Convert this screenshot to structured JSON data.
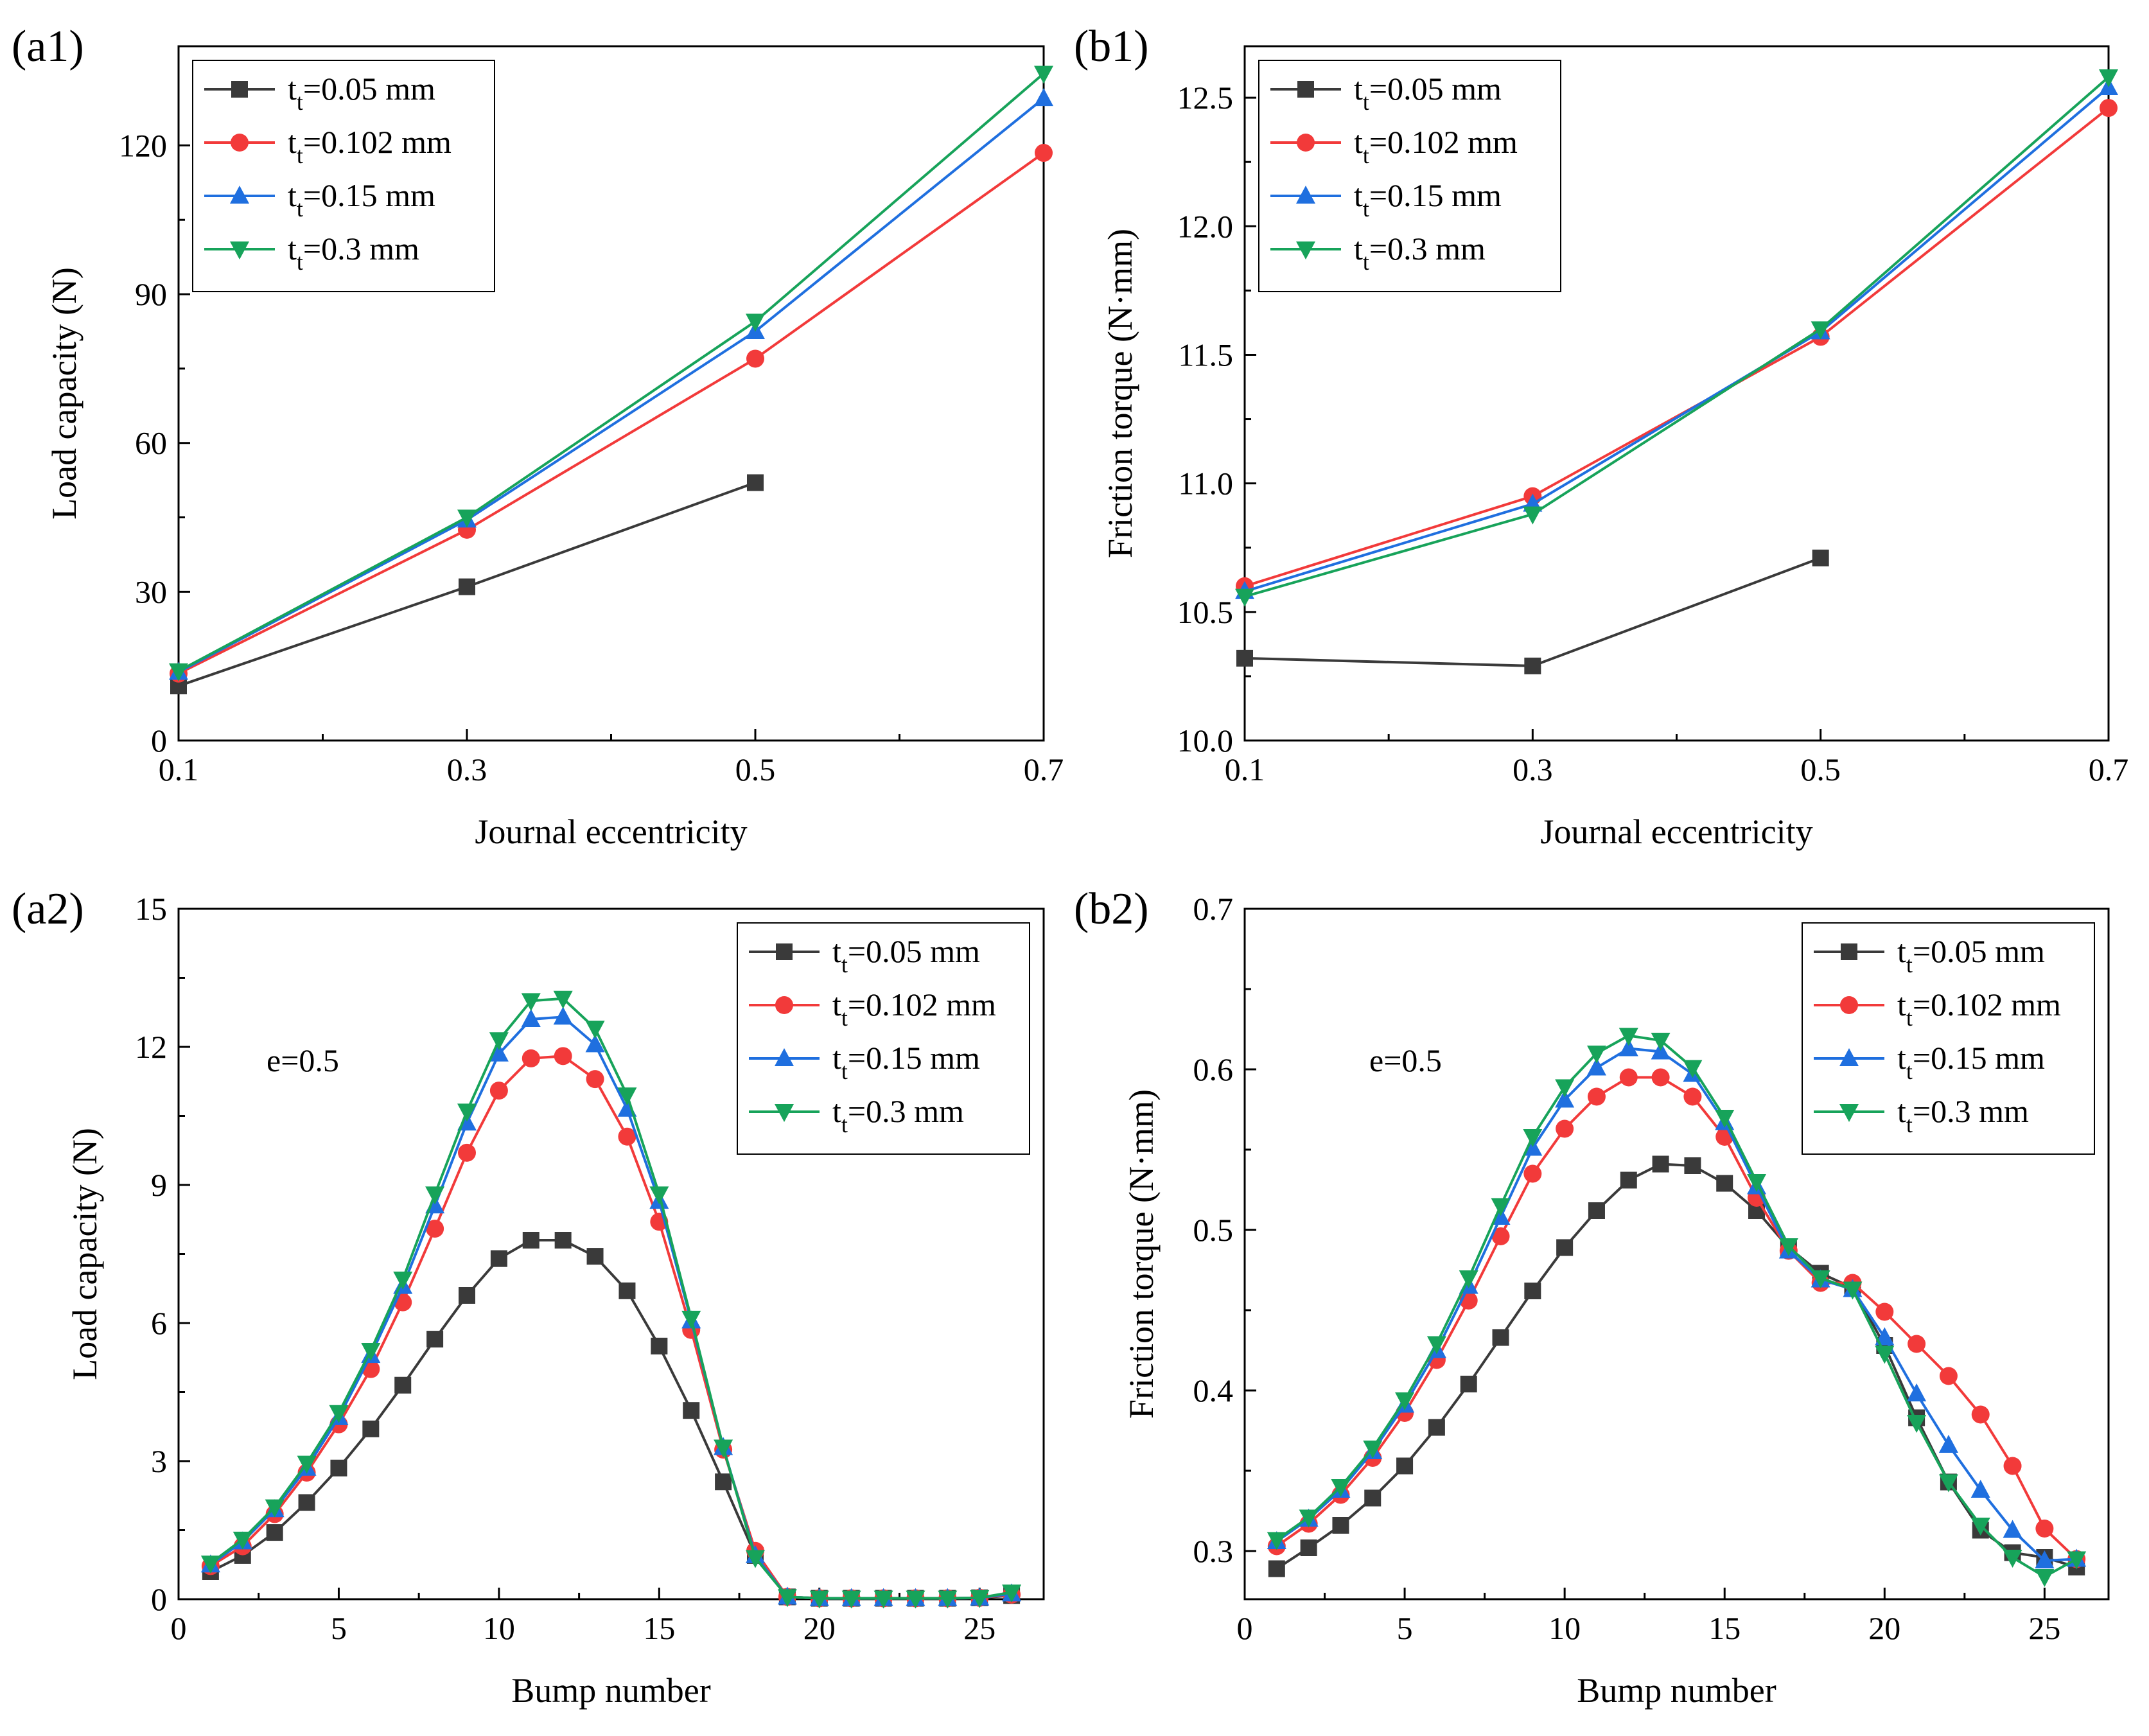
{
  "figure": {
    "colors": {
      "0.05": "#3a3a3a",
      "0.102": "#f23a3a",
      "0.15": "#1f6fdf",
      "0.3": "#17a35a"
    },
    "panels": [
      {
        "id": "a1",
        "label": "(a1)",
        "annotation": "",
        "chart_data": {
          "type": "line",
          "xlabel": "Journal eccentricity",
          "ylabel": "Load capacity (N)",
          "xlim": [
            0.1,
            0.7
          ],
          "ylim": [
            0,
            140
          ],
          "xticks": [
            0.1,
            0.3,
            0.5,
            0.7
          ],
          "xtick_labels": [
            "0.1",
            "0.3",
            "0.5",
            "0.7"
          ],
          "xminor": [
            0.2,
            0.4,
            0.6
          ],
          "yticks": [
            0,
            30,
            60,
            90,
            120
          ],
          "ytick_labels": [
            "0",
            "30",
            "60",
            "90",
            "120"
          ],
          "legend_position": "top-left",
          "series": [
            {
              "name_main": "t",
              "name_sub": "t",
              "name_rest": "=0.05 mm",
              "key": "0.05",
              "marker": "square",
              "x": [
                0.1,
                0.3,
                0.5
              ],
              "values": [
                11,
                31,
                52
              ]
            },
            {
              "name_main": "t",
              "name_sub": "t",
              "name_rest": "=0.102 mm",
              "key": "0.102",
              "marker": "circle",
              "x": [
                0.1,
                0.3,
                0.5,
                0.7
              ],
              "values": [
                13.5,
                42.5,
                77,
                118.5
              ]
            },
            {
              "name_main": "t",
              "name_sub": "t",
              "name_rest": "=0.15 mm",
              "key": "0.15",
              "marker": "triangle-up",
              "x": [
                0.1,
                0.3,
                0.5,
                0.7
              ],
              "values": [
                13.8,
                44.5,
                82.5,
                129.5
              ]
            },
            {
              "name_main": "t",
              "name_sub": "t",
              "name_rest": "=0.3 mm",
              "key": "0.3",
              "marker": "triangle-down",
              "x": [
                0.1,
                0.3,
                0.5,
                0.7
              ],
              "values": [
                14,
                45,
                84.5,
                134.5
              ]
            }
          ]
        }
      },
      {
        "id": "b1",
        "label": "(b1)",
        "annotation": "",
        "chart_data": {
          "type": "line",
          "xlabel": "Journal eccentricity",
          "ylabel": "Friction torque (N·mm)",
          "xlim": [
            0.1,
            0.7
          ],
          "ylim": [
            10.0,
            12.7
          ],
          "xticks": [
            0.1,
            0.3,
            0.5,
            0.7
          ],
          "xtick_labels": [
            "0.1",
            "0.3",
            "0.5",
            "0.7"
          ],
          "xminor": [
            0.2,
            0.4,
            0.6
          ],
          "yticks": [
            10.0,
            10.5,
            11.0,
            11.5,
            12.0,
            12.5
          ],
          "ytick_labels": [
            "10.0",
            "10.5",
            "11.0",
            "11.5",
            "12.0",
            "12.5"
          ],
          "legend_position": "top-left",
          "series": [
            {
              "name_main": "t",
              "name_sub": "t",
              "name_rest": "=0.05 mm",
              "key": "0.05",
              "marker": "square",
              "x": [
                0.1,
                0.3,
                0.5
              ],
              "values": [
                10.32,
                10.29,
                10.71
              ]
            },
            {
              "name_main": "t",
              "name_sub": "t",
              "name_rest": "=0.102 mm",
              "key": "0.102",
              "marker": "circle",
              "x": [
                0.1,
                0.3,
                0.5,
                0.7
              ],
              "values": [
                10.6,
                10.95,
                11.57,
                12.46
              ]
            },
            {
              "name_main": "t",
              "name_sub": "t",
              "name_rest": "=0.15 mm",
              "key": "0.15",
              "marker": "triangle-up",
              "x": [
                0.1,
                0.3,
                0.5,
                0.7
              ],
              "values": [
                10.58,
                10.92,
                11.59,
                12.54
              ]
            },
            {
              "name_main": "t",
              "name_sub": "t",
              "name_rest": "=0.3 mm",
              "key": "0.3",
              "marker": "triangle-down",
              "x": [
                0.1,
                0.3,
                0.5,
                0.7
              ],
              "values": [
                10.56,
                10.88,
                11.6,
                12.58
              ]
            }
          ]
        }
      },
      {
        "id": "a2",
        "label": "(a2)",
        "annotation": "e=0.5",
        "chart_data": {
          "type": "line",
          "xlabel": "Bump number",
          "ylabel": "Load capacity (N)",
          "xlim": [
            0,
            27
          ],
          "ylim": [
            0,
            15
          ],
          "xticks": [
            0,
            5,
            10,
            15,
            20,
            25
          ],
          "xtick_labels": [
            "0",
            "5",
            "10",
            "15",
            "20",
            "25"
          ],
          "xminor": [
            2.5,
            7.5,
            12.5,
            17.5,
            22.5
          ],
          "yticks": [
            0,
            3,
            6,
            9,
            12,
            15
          ],
          "ytick_labels": [
            "0",
            "3",
            "6",
            "9",
            "12",
            "15"
          ],
          "legend_position": "top-right",
          "series": [
            {
              "name_main": "t",
              "name_sub": "t",
              "name_rest": "=0.05 mm",
              "key": "0.05",
              "marker": "square",
              "x": [
                1,
                2,
                3,
                4,
                5,
                6,
                7,
                8,
                9,
                10,
                11,
                12,
                13,
                14,
                15,
                16,
                17,
                18,
                19,
                20,
                21,
                22,
                23,
                24,
                25,
                26
              ],
              "values": [
                0.6,
                0.95,
                1.45,
                2.1,
                2.85,
                3.7,
                4.65,
                5.65,
                6.6,
                7.4,
                7.8,
                7.8,
                7.45,
                6.7,
                5.5,
                4.1,
                2.55,
                0.95,
                0.05,
                0.02,
                0.02,
                0.02,
                0.02,
                0.02,
                0.03,
                0.08
              ]
            },
            {
              "name_main": "t",
              "name_sub": "t",
              "name_rest": "=0.102 mm",
              "key": "0.102",
              "marker": "circle",
              "x": [
                1,
                2,
                3,
                4,
                5,
                6,
                7,
                8,
                9,
                10,
                11,
                12,
                13,
                14,
                15,
                16,
                17,
                18,
                19,
                20,
                21,
                22,
                23,
                24,
                25,
                26
              ],
              "values": [
                0.72,
                1.15,
                1.85,
                2.75,
                3.8,
                5.0,
                6.45,
                8.05,
                9.7,
                11.05,
                11.75,
                11.8,
                11.3,
                10.05,
                8.2,
                5.85,
                3.25,
                1.05,
                0.05,
                0.02,
                0.02,
                0.02,
                0.02,
                0.02,
                0.03,
                0.1
              ]
            },
            {
              "name_main": "t",
              "name_sub": "t",
              "name_rest": "=0.15 mm",
              "key": "0.15",
              "marker": "triangle-up",
              "x": [
                1,
                2,
                3,
                4,
                5,
                6,
                7,
                8,
                9,
                10,
                11,
                12,
                13,
                14,
                15,
                16,
                17,
                18,
                19,
                20,
                21,
                22,
                23,
                24,
                25,
                26
              ],
              "values": [
                0.75,
                1.25,
                1.95,
                2.85,
                3.95,
                5.3,
                6.8,
                8.55,
                10.35,
                11.85,
                12.6,
                12.65,
                12.05,
                10.65,
                8.65,
                6.05,
                3.3,
                0.95,
                0.05,
                0.02,
                0.02,
                0.02,
                0.02,
                0.02,
                0.03,
                0.12
              ]
            },
            {
              "name_main": "t",
              "name_sub": "t",
              "name_rest": "=0.3 mm",
              "key": "0.3",
              "marker": "triangle-down",
              "x": [
                1,
                2,
                3,
                4,
                5,
                6,
                7,
                8,
                9,
                10,
                11,
                12,
                13,
                14,
                15,
                16,
                17,
                18,
                19,
                20,
                21,
                22,
                23,
                24,
                25,
                26
              ],
              "values": [
                0.78,
                1.3,
                2.0,
                2.95,
                4.05,
                5.4,
                6.95,
                8.8,
                10.6,
                12.15,
                13.0,
                13.05,
                12.4,
                10.95,
                8.8,
                6.1,
                3.3,
                0.9,
                0.05,
                0.02,
                0.02,
                0.02,
                0.02,
                0.02,
                0.03,
                0.15
              ]
            }
          ]
        }
      },
      {
        "id": "b2",
        "label": "(b2)",
        "annotation": "e=0.5",
        "chart_data": {
          "type": "line",
          "xlabel": "Bump number",
          "ylabel": "Friction torque (N·mm)",
          "xlim": [
            0,
            27
          ],
          "ylim": [
            0.27,
            0.7
          ],
          "xticks": [
            0,
            5,
            10,
            15,
            20,
            25
          ],
          "xtick_labels": [
            "0",
            "5",
            "10",
            "15",
            "20",
            "25"
          ],
          "xminor": [
            2.5,
            7.5,
            12.5,
            17.5,
            22.5
          ],
          "yticks": [
            0.3,
            0.4,
            0.5,
            0.6,
            0.7
          ],
          "ytick_labels": [
            "0.3",
            "0.4",
            "0.5",
            "0.6",
            "0.7"
          ],
          "legend_position": "top-right",
          "series": [
            {
              "name_main": "t",
              "name_sub": "t",
              "name_rest": "=0.05 mm",
              "key": "0.05",
              "marker": "square",
              "x": [
                1,
                2,
                3,
                4,
                5,
                6,
                7,
                8,
                9,
                10,
                11,
                12,
                13,
                14,
                15,
                16,
                17,
                18,
                19,
                20,
                21,
                22,
                23,
                24,
                25,
                26
              ],
              "values": [
                0.289,
                0.302,
                0.316,
                0.333,
                0.353,
                0.377,
                0.404,
                0.433,
                0.462,
                0.489,
                0.512,
                0.531,
                0.541,
                0.54,
                0.529,
                0.512,
                0.489,
                0.473,
                0.464,
                0.428,
                0.383,
                0.343,
                0.313,
                0.299,
                0.296,
                0.29
              ]
            },
            {
              "name_main": "t",
              "name_sub": "t",
              "name_rest": "=0.102 mm",
              "key": "0.102",
              "marker": "circle",
              "x": [
                1,
                2,
                3,
                4,
                5,
                6,
                7,
                8,
                9,
                10,
                11,
                12,
                13,
                14,
                15,
                16,
                17,
                18,
                19,
                20,
                21,
                22,
                23,
                24,
                25,
                26
              ],
              "values": [
                0.303,
                0.317,
                0.335,
                0.358,
                0.386,
                0.419,
                0.456,
                0.496,
                0.535,
                0.563,
                0.583,
                0.595,
                0.595,
                0.583,
                0.558,
                0.52,
                0.487,
                0.467,
                0.467,
                0.449,
                0.429,
                0.409,
                0.385,
                0.353,
                0.314,
                0.295
              ]
            },
            {
              "name_main": "t",
              "name_sub": "t",
              "name_rest": "=0.15 mm",
              "key": "0.15",
              "marker": "triangle-up",
              "x": [
                1,
                2,
                3,
                4,
                5,
                6,
                7,
                8,
                9,
                10,
                11,
                12,
                13,
                14,
                15,
                16,
                17,
                18,
                19,
                20,
                21,
                22,
                23,
                24,
                25,
                26
              ],
              "values": [
                0.306,
                0.32,
                0.338,
                0.362,
                0.391,
                0.425,
                0.465,
                0.508,
                0.551,
                0.581,
                0.601,
                0.613,
                0.611,
                0.597,
                0.567,
                0.527,
                0.487,
                0.469,
                0.463,
                0.433,
                0.398,
                0.366,
                0.338,
                0.313,
                0.294,
                0.295
              ]
            },
            {
              "name_main": "t",
              "name_sub": "t",
              "name_rest": "=0.3 mm",
              "key": "0.3",
              "marker": "triangle-down",
              "x": [
                1,
                2,
                3,
                4,
                5,
                6,
                7,
                8,
                9,
                10,
                11,
                12,
                13,
                14,
                15,
                16,
                17,
                18,
                19,
                20,
                21,
                22,
                23,
                24,
                25,
                26
              ],
              "values": [
                0.307,
                0.321,
                0.34,
                0.364,
                0.394,
                0.429,
                0.47,
                0.515,
                0.558,
                0.589,
                0.61,
                0.621,
                0.618,
                0.601,
                0.57,
                0.53,
                0.49,
                0.47,
                0.463,
                0.423,
                0.38,
                0.343,
                0.316,
                0.296,
                0.284,
                0.295
              ]
            }
          ]
        }
      }
    ]
  }
}
